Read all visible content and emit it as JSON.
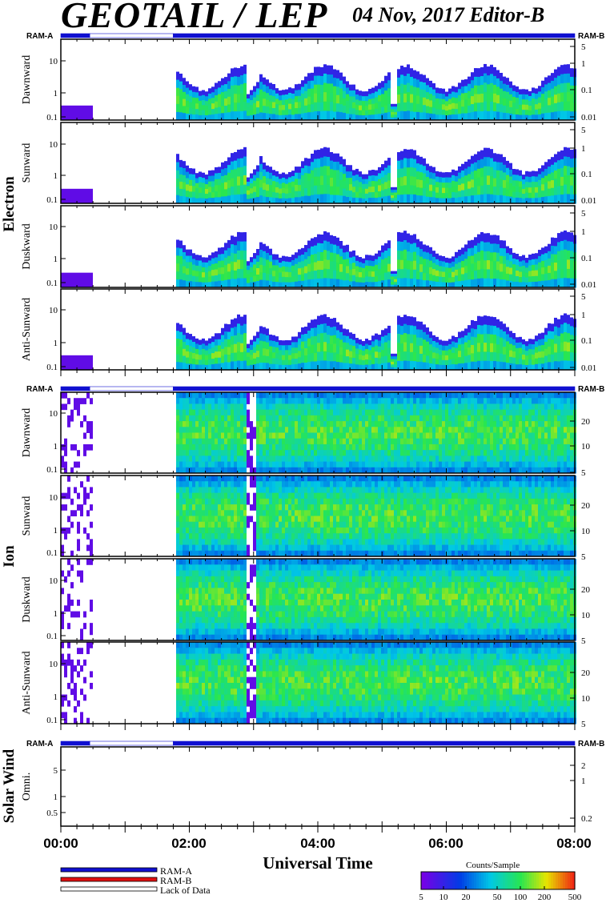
{
  "header": {
    "title": "GEOTAIL / LEP",
    "date_editor": "04 Nov, 2017   Editor-B"
  },
  "groups": [
    {
      "label": "Electron"
    },
    {
      "label": "Ion"
    },
    {
      "label": "Solar Wind"
    }
  ],
  "ram_labels": {
    "left": "RAM-A",
    "right": "RAM-B"
  },
  "panels": [
    {
      "label": "Dawnward",
      "group": 0,
      "left_ticks": [
        "10",
        "1",
        "0.1"
      ],
      "right_ticks": [
        "5",
        "1",
        "0.1",
        "0.01"
      ]
    },
    {
      "label": "Sunward",
      "group": 0,
      "left_ticks": [
        "10",
        "1",
        "0.1"
      ],
      "right_ticks": [
        "5",
        "1",
        "0.1",
        "0.01"
      ]
    },
    {
      "label": "Duskward",
      "group": 0,
      "left_ticks": [
        "10",
        "1",
        "0.1"
      ],
      "right_ticks": [
        "5",
        "1",
        "0.1",
        "0.01"
      ]
    },
    {
      "label": "Anti-Sunward",
      "group": 0,
      "left_ticks": [
        "10",
        "1",
        "0.1"
      ],
      "right_ticks": [
        "5",
        "1",
        "0.1",
        "0.01"
      ]
    },
    {
      "label": "Dawnward",
      "group": 1,
      "left_ticks": [
        "10",
        "1",
        "0.1"
      ],
      "right_ticks": [
        "20",
        "10",
        "5"
      ]
    },
    {
      "label": "Sunward",
      "group": 1,
      "left_ticks": [
        "10",
        "1",
        "0.1"
      ],
      "right_ticks": [
        "20",
        "10",
        "5"
      ]
    },
    {
      "label": "Duskward",
      "group": 1,
      "left_ticks": [
        "10",
        "1",
        "0.1"
      ],
      "right_ticks": [
        "20",
        "10",
        "5"
      ]
    },
    {
      "label": "Anti-Sunward",
      "group": 1,
      "left_ticks": [
        "10",
        "1",
        "0.1"
      ],
      "right_ticks": [
        "20",
        "10",
        "5"
      ]
    },
    {
      "label": "Omni.",
      "group": 2,
      "left_ticks": [
        "5",
        "1",
        "0.5"
      ],
      "right_ticks": [
        "2",
        "1",
        "0.2"
      ]
    }
  ],
  "x_axis": {
    "title": "Universal Time",
    "ticks": [
      "00:00",
      "02:00",
      "04:00",
      "06:00",
      "08:00"
    ]
  },
  "legend": [
    {
      "label": "RAM-A",
      "color": "#1010d0"
    },
    {
      "label": "RAM-B",
      "color": "#e01010"
    },
    {
      "label": "Lack of Data",
      "color": "#ffffff"
    }
  ],
  "colorbar": {
    "title": "Counts/Sample",
    "ticks": [
      "5",
      "10",
      "20",
      "50",
      "100",
      "200",
      "500"
    ]
  },
  "chart_data": {
    "type": "heatmap",
    "title": "GEOTAIL / LEP",
    "subtitle": "04 Nov, 2017   Editor-B",
    "xlabel": "Universal Time",
    "x_ticks": [
      "00:00",
      "02:00",
      "04:00",
      "06:00",
      "08:00"
    ],
    "xlim": [
      "00:00",
      "08:00"
    ],
    "y_scale": "log",
    "colorbar": {
      "label": "Counts/Sample",
      "range": [
        5,
        500
      ],
      "scale": "log"
    },
    "data_coverage": [
      {
        "start": "00:00",
        "end": "00:27",
        "mode": "RAM-A"
      },
      {
        "start": "00:27",
        "end": "01:45",
        "mode": "Lack of Data"
      },
      {
        "start": "01:45",
        "end": "08:00",
        "mode": "RAM-A"
      }
    ]
  }
}
